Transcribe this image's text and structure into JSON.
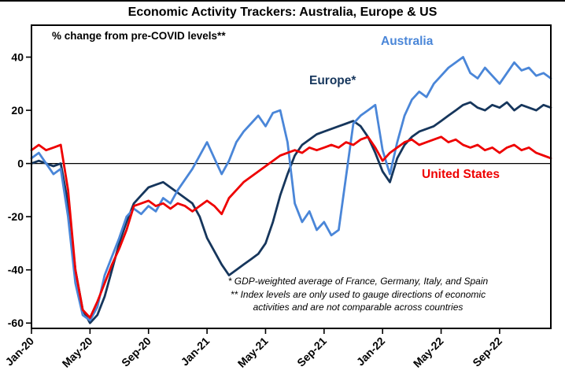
{
  "title": "Economic Activity Trackers: Australia, Europe & US",
  "chart_data": {
    "type": "line",
    "title": "Economic Activity Trackers: Australia, Europe & US",
    "subtitle": "% change from pre-COVID levels**",
    "xlabel": "",
    "ylabel": "",
    "x_unit": "semi-monthly index starting Jan-2020",
    "x_months_total": 35.5,
    "points_per_month": 2,
    "x_tick_labels": [
      "Jan-20",
      "May-20",
      "Sep-20",
      "Jan-21",
      "May-21",
      "Sep-21",
      "Jan-22",
      "May-22",
      "Sep-22"
    ],
    "x_tick_months": [
      0,
      4,
      8,
      12,
      16,
      20,
      24,
      28,
      32
    ],
    "y_ticks": [
      40,
      20,
      0,
      -20,
      -40,
      -60
    ],
    "ylim_ticks": [
      -60,
      40
    ],
    "ylim_render": [
      -62,
      52
    ],
    "grid": false,
    "legend_position": "inline-annotations",
    "axis_color": "#000000",
    "series": [
      {
        "name": "Europe",
        "label_text": "Europe*",
        "color": "#16365c",
        "values": [
          0,
          1,
          0,
          -1,
          0,
          -15,
          -40,
          -55,
          -60,
          -57,
          -50,
          -40,
          -30,
          -22,
          -15,
          -12,
          -9,
          -8,
          -7,
          -9,
          -11,
          -13,
          -15,
          -20,
          -28,
          -33,
          -38,
          -42,
          -40,
          -38,
          -36,
          -34,
          -30,
          -22,
          -12,
          -4,
          3,
          7,
          9,
          11,
          12,
          13,
          14,
          15,
          16,
          14,
          10,
          4,
          -3,
          -7,
          2,
          7,
          10,
          12,
          13,
          14,
          16,
          18,
          20,
          22,
          23,
          21,
          20,
          22,
          21,
          23,
          20,
          22,
          21,
          20,
          22,
          21
        ]
      },
      {
        "name": "Australia",
        "label_text": "Australia",
        "color": "#4a86d8",
        "values": [
          2,
          4,
          0,
          -4,
          -2,
          -20,
          -45,
          -57,
          -59,
          -54,
          -42,
          -35,
          -28,
          -20,
          -17,
          -19,
          -16,
          -18,
          -13,
          -15,
          -10,
          -6,
          -2,
          3,
          8,
          2,
          -4,
          1,
          8,
          12,
          15,
          18,
          14,
          19,
          20,
          8,
          -15,
          -22,
          -18,
          -25,
          -22,
          -27,
          -25,
          -5,
          15,
          18,
          20,
          22,
          5,
          -4,
          8,
          18,
          24,
          27,
          25,
          30,
          33,
          36,
          38,
          40,
          34,
          32,
          36,
          33,
          30,
          34,
          38,
          35,
          36,
          33,
          34,
          32
        ]
      },
      {
        "name": "United States",
        "label_text": "United States",
        "color": "#ee0000",
        "values": [
          5,
          7,
          5,
          6,
          7,
          -10,
          -40,
          -55,
          -58,
          -52,
          -45,
          -38,
          -32,
          -25,
          -16,
          -15,
          -14,
          -16,
          -15,
          -17,
          -15,
          -16,
          -18,
          -16,
          -14,
          -16,
          -19,
          -13,
          -10,
          -7,
          -5,
          -3,
          -1,
          1,
          3,
          4,
          5,
          4,
          6,
          5,
          6,
          7,
          6,
          8,
          7,
          9,
          10,
          6,
          1,
          4,
          6,
          8,
          9,
          7,
          8,
          9,
          10,
          8,
          9,
          7,
          6,
          7,
          5,
          6,
          4,
          6,
          7,
          5,
          6,
          4,
          3,
          2
        ]
      }
    ],
    "footnotes": [
      "* GDP-weighted average of France, Germany, Italy, and Spain",
      "** Index levels are only used to gauge directions of economic",
      "activities and are not comparable across countries"
    ]
  }
}
